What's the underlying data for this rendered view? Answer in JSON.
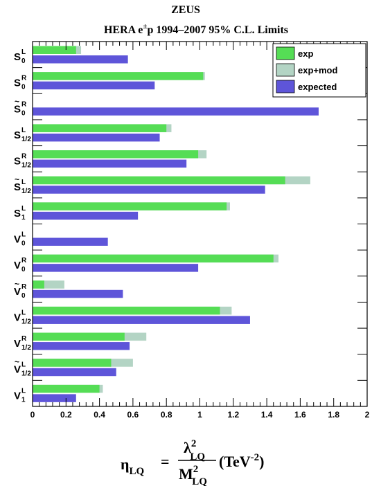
{
  "chart_data": {
    "type": "bar",
    "orientation": "horizontal",
    "title": "ZEUS",
    "subtitle": {
      "prefix": "HERA e",
      "sup": "±",
      "suffix": "p 1994–2007 95% C.L. Limits"
    },
    "categories": [
      {
        "base": "S",
        "tilde": false,
        "sup": "L",
        "sub": "0"
      },
      {
        "base": "S",
        "tilde": false,
        "sup": "R",
        "sub": "0"
      },
      {
        "base": "S",
        "tilde": true,
        "sup": "R",
        "sub": "0"
      },
      {
        "base": "S",
        "tilde": false,
        "sup": "L",
        "sub": "1/2"
      },
      {
        "base": "S",
        "tilde": false,
        "sup": "R",
        "sub": "1/2"
      },
      {
        "base": "S",
        "tilde": true,
        "sup": "L",
        "sub": "1/2"
      },
      {
        "base": "S",
        "tilde": false,
        "sup": "L",
        "sub": "1"
      },
      {
        "base": "V",
        "tilde": false,
        "sup": "L",
        "sub": "0"
      },
      {
        "base": "V",
        "tilde": false,
        "sup": "R",
        "sub": "0"
      },
      {
        "base": "V",
        "tilde": true,
        "sup": "R",
        "sub": "0"
      },
      {
        "base": "V",
        "tilde": false,
        "sup": "L",
        "sub": "1/2"
      },
      {
        "base": "V",
        "tilde": false,
        "sup": "R",
        "sub": "1/2"
      },
      {
        "base": "V",
        "tilde": true,
        "sup": "L",
        "sub": "1/2"
      },
      {
        "base": "V",
        "tilde": false,
        "sup": "L",
        "sub": "1"
      }
    ],
    "series": [
      {
        "name": "exp",
        "color": "#55dd55",
        "values": [
          0.26,
          1.02,
          null,
          0.8,
          0.99,
          1.51,
          1.16,
          null,
          1.44,
          0.07,
          1.12,
          0.55,
          0.47,
          0.4
        ]
      },
      {
        "name": "exp+mod",
        "color": "#b3d4c4",
        "values": [
          0.29,
          1.03,
          null,
          0.83,
          1.04,
          1.66,
          1.18,
          null,
          1.47,
          0.19,
          1.19,
          0.68,
          0.6,
          0.42
        ]
      },
      {
        "name": "expected",
        "color": "#5e55d9",
        "values": [
          0.57,
          0.73,
          1.71,
          0.76,
          0.92,
          1.39,
          0.63,
          0.45,
          0.99,
          0.54,
          1.3,
          0.58,
          0.5,
          0.26
        ]
      }
    ],
    "xlim": [
      0,
      2
    ],
    "x_ticks": [
      "0",
      "0.2",
      "0.4",
      "0.6",
      "0.8",
      "1",
      "1.2",
      "1.4",
      "1.6",
      "1.8",
      "2"
    ],
    "xlabel": {
      "eta": "η",
      "eta_sub": "LQ",
      "equals": "=",
      "num": "λ",
      "num_sup": "2",
      "num_sub": "LQ",
      "den": "M",
      "den_sup": "2",
      "den_sub": "LQ",
      "unit_prefix": "(TeV",
      "unit_sup": "-2",
      "unit_suffix": ")"
    },
    "legend_position": "top-right",
    "grid": false
  }
}
